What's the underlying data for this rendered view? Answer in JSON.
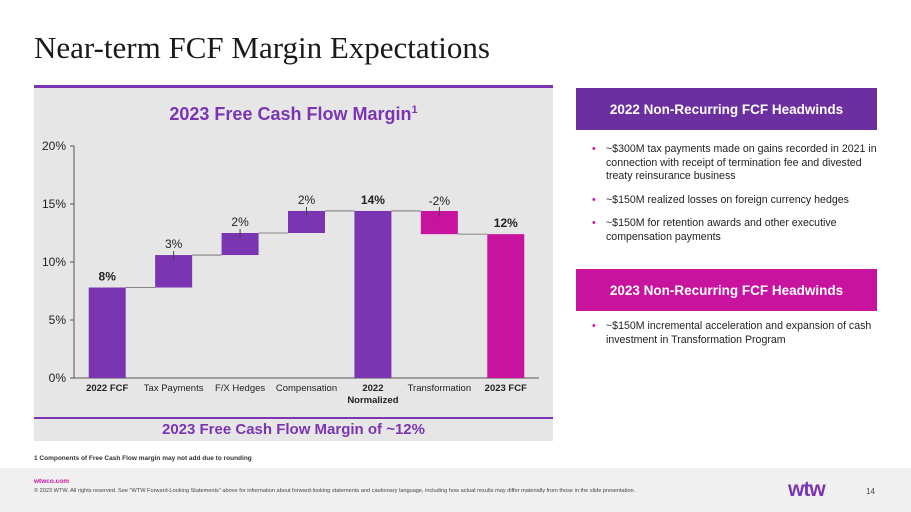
{
  "page": {
    "title": "Near-term FCF Margin Expectations",
    "footnote": "1 Components of Free Cash Flow margin may not add due to rounding",
    "footer_url": "wtwco.com",
    "footer_copy": "© 2023 WTW. All rights reserved. See \"WTW Forward-Looking Statements\" above for information about forward-looking statements and cautionary language, including how actual results may differ materially from those in the slide presentation.",
    "logo": "wtw",
    "page_number": "14"
  },
  "chart_data": {
    "type": "bar",
    "subtype": "waterfall",
    "title": "2023 Free Cash Flow Margin",
    "title_sup": "1",
    "footer": "2023 Free Cash Flow Margin of ~12%",
    "ylim": [
      0,
      20
    ],
    "yticks": [
      "0%",
      "5%",
      "10%",
      "15%",
      "20%"
    ],
    "categories": [
      {
        "label": "2022 FCF",
        "bold": true
      },
      {
        "label": "Tax Payments",
        "bold": false
      },
      {
        "label": "F/X Hedges",
        "bold": false
      },
      {
        "label": "Compensation",
        "bold": false
      },
      {
        "label": "2022 Normalized",
        "bold": true
      },
      {
        "label": "Transformation",
        "bold": false
      },
      {
        "label": "2023 FCF",
        "bold": true
      }
    ],
    "bars": [
      {
        "start": 0,
        "end": 7.8,
        "label": "8%",
        "kind": "total",
        "color": "#7b35b3"
      },
      {
        "start": 7.8,
        "end": 10.6,
        "label": "3%",
        "kind": "delta",
        "color": "#7b35b3"
      },
      {
        "start": 10.6,
        "end": 12.5,
        "label": "2%",
        "kind": "delta",
        "color": "#7b35b3"
      },
      {
        "start": 12.5,
        "end": 14.4,
        "label": "2%",
        "kind": "delta",
        "color": "#7b35b3"
      },
      {
        "start": 0,
        "end": 14.4,
        "label": "14%",
        "kind": "total",
        "color": "#7b35b3"
      },
      {
        "start": 14.4,
        "end": 12.4,
        "label": "-2%",
        "kind": "delta",
        "color": "#c8139f"
      },
      {
        "start": 0,
        "end": 12.4,
        "label": "12%",
        "kind": "total",
        "color": "#c8139f"
      }
    ],
    "grid": false
  },
  "headwinds_2022": {
    "header": "2022 Non-Recurring FCF Headwinds",
    "items": [
      "~$300M tax payments made on gains recorded in 2021 in connection with receipt of termination fee and divested treaty reinsurance business",
      "~$150M realized losses on foreign currency hedges",
      "~$150M for retention awards and other executive compensation payments"
    ]
  },
  "headwinds_2023": {
    "header": "2023 Non-Recurring FCF Headwinds",
    "items": [
      "~$150M incremental acceleration and expansion of cash investment in Transformation Program"
    ]
  }
}
